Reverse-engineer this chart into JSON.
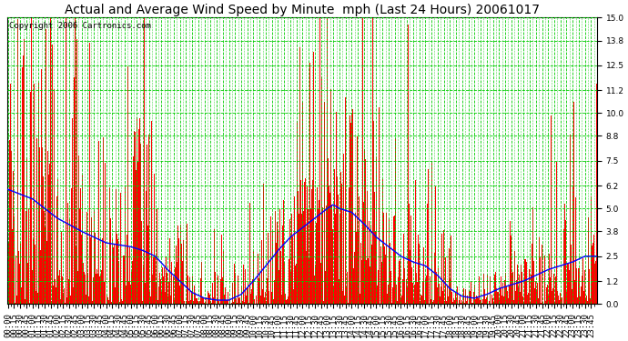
{
  "title": "Actual and Average Wind Speed by Minute  mph (Last 24 Hours) 20061017",
  "copyright_text": "Copyright 2006 Cartronics.com",
  "bg_color": "#ffffff",
  "plot_bg_color": "#ffffff",
  "bar_color": "#ff0000",
  "line_color": "#0000ff",
  "grid_color": "#00cc00",
  "yticks": [
    0.0,
    1.2,
    2.5,
    3.8,
    5.0,
    6.2,
    7.5,
    8.8,
    10.0,
    11.2,
    12.5,
    13.8,
    15.0
  ],
  "ylim": [
    0.0,
    15.0
  ],
  "minutes_per_day": 1440,
  "title_fontsize": 10,
  "copyright_fontsize": 6.5,
  "tick_fontsize": 6.5,
  "avg_profile_hours": [
    0,
    1,
    2,
    3,
    3.5,
    4,
    5,
    5.5,
    6,
    6.5,
    7,
    7.5,
    8,
    8.5,
    9,
    9.5,
    10,
    10.5,
    11,
    11.5,
    12,
    12.5,
    13,
    13.25,
    13.5,
    14,
    14.5,
    15,
    15.5,
    16,
    16.5,
    17,
    17.5,
    18,
    18.5,
    19,
    19.5,
    20,
    20.5,
    21,
    21.5,
    22,
    22.5,
    23,
    23.5,
    24
  ],
  "avg_profile_values": [
    6.0,
    5.5,
    4.5,
    3.8,
    3.5,
    3.2,
    3.0,
    2.8,
    2.5,
    1.8,
    1.2,
    0.6,
    0.3,
    0.2,
    0.2,
    0.5,
    1.2,
    2.0,
    2.8,
    3.5,
    4.0,
    4.5,
    5.0,
    5.2,
    5.0,
    4.8,
    4.2,
    3.5,
    3.0,
    2.5,
    2.2,
    2.0,
    1.5,
    0.8,
    0.4,
    0.3,
    0.5,
    0.8,
    1.0,
    1.2,
    1.5,
    1.8,
    2.0,
    2.2,
    2.5,
    2.5
  ],
  "seed": 1234
}
